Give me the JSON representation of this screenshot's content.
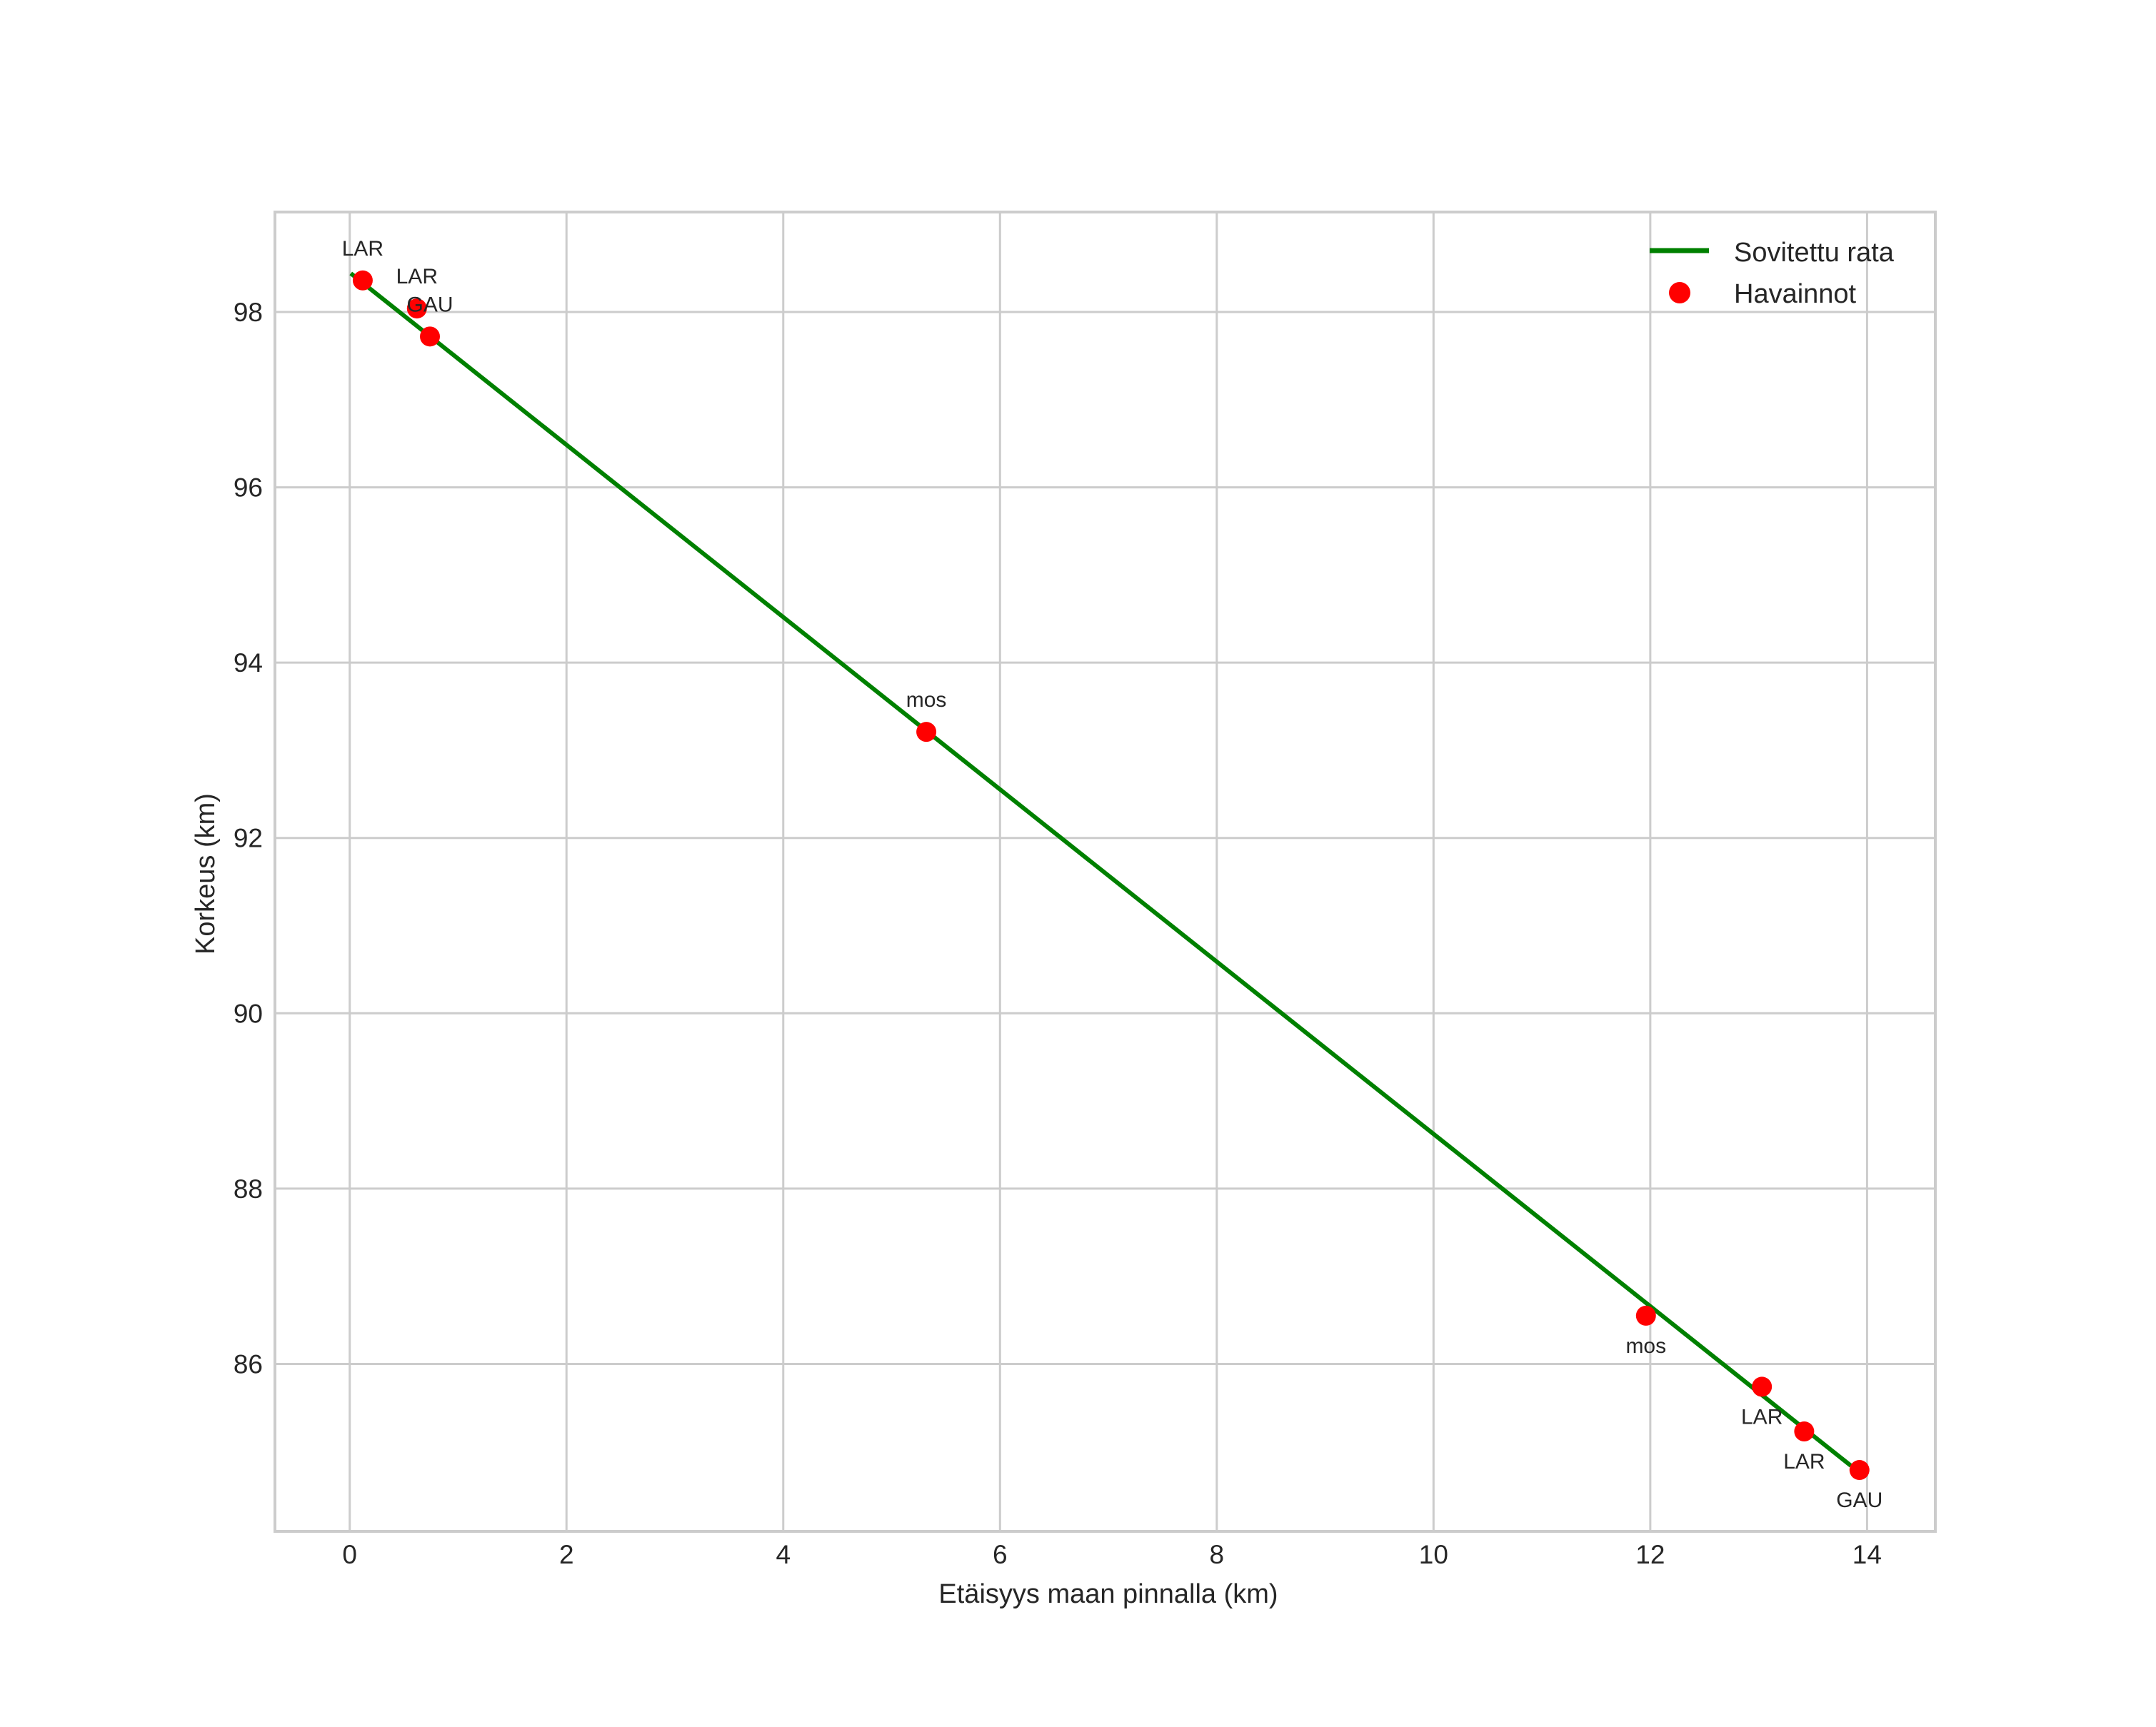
{
  "chart_data": {
    "type": "line",
    "title": "",
    "xlabel": "Etäisyys maan pinnalla (km)",
    "ylabel": "Korkeus (km)",
    "xlim": [
      -0.69,
      14.63
    ],
    "ylim": [
      84.09,
      99.14
    ],
    "xticks": [
      0,
      2,
      4,
      6,
      8,
      10,
      12,
      14
    ],
    "yticks": [
      86,
      88,
      90,
      92,
      94,
      96,
      98
    ],
    "xtick_labels": [
      "0",
      "2",
      "4",
      "6",
      "8",
      "10",
      "12",
      "14"
    ],
    "ytick_labels": [
      "86",
      "88",
      "90",
      "92",
      "94",
      "96",
      "98"
    ],
    "grid": true,
    "legend_position": "upper right",
    "series": [
      {
        "name": "Sovitettu rata",
        "type": "line",
        "color": "#008000",
        "x": [
          0.01,
          13.85
        ],
        "y": [
          98.44,
          84.84
        ]
      },
      {
        "name": "Havainnot",
        "type": "scatter",
        "color": "#ff0000",
        "points": [
          {
            "x": 0.12,
            "y": 98.36,
            "label": "LAR",
            "label_pos": "above"
          },
          {
            "x": 0.62,
            "y": 98.04,
            "label": "LAR",
            "label_pos": "above"
          },
          {
            "x": 0.74,
            "y": 97.72,
            "label": "GAU",
            "label_pos": "above"
          },
          {
            "x": 5.32,
            "y": 93.21,
            "label": "mos",
            "label_pos": "above"
          },
          {
            "x": 11.96,
            "y": 86.55,
            "label": "mos",
            "label_pos": "below"
          },
          {
            "x": 13.03,
            "y": 85.74,
            "label": "LAR",
            "label_pos": "below"
          },
          {
            "x": 13.42,
            "y": 85.23,
            "label": "LAR",
            "label_pos": "below"
          },
          {
            "x": 13.93,
            "y": 84.79,
            "label": "GAU",
            "label_pos": "below"
          }
        ]
      }
    ]
  },
  "legend": {
    "items": [
      {
        "label": "Sovitettu rata",
        "marker": "line",
        "color": "#008000"
      },
      {
        "label": "Havainnot",
        "marker": "circle",
        "color": "#ff0000"
      }
    ]
  },
  "colors": {
    "grid": "#cccccc",
    "text": "#262626",
    "fit_line": "#008000",
    "observations": "#ff0000"
  }
}
